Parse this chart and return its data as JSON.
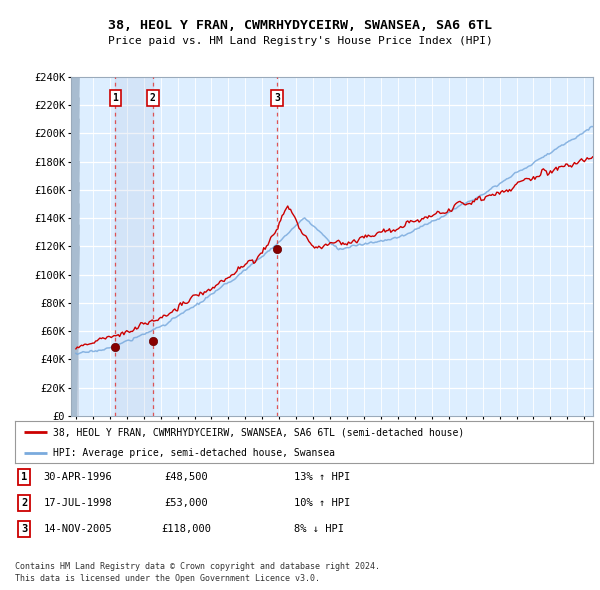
{
  "title": "38, HEOL Y FRAN, CWMRHYDYCEIRW, SWANSEA, SA6 6TL",
  "subtitle": "Price paid vs. HM Land Registry's House Price Index (HPI)",
  "xlim_start": 1993.7,
  "xlim_end": 2024.5,
  "ylim_min": 0,
  "ylim_max": 240000,
  "ytick_step": 20000,
  "sale_dates_num": [
    1996.33,
    1998.54,
    2005.87
  ],
  "sale_prices": [
    48500,
    53000,
    118000
  ],
  "sale_labels": [
    "1",
    "2",
    "3"
  ],
  "legend_line1": "38, HEOL Y FRAN, CWMRHYDYCEIRW, SWANSEA, SA6 6TL (semi-detached house)",
  "legend_line2": "HPI: Average price, semi-detached house, Swansea",
  "table_data": [
    [
      "1",
      "30-APR-1996",
      "£48,500",
      "13% ↑ HPI"
    ],
    [
      "2",
      "17-JUL-1998",
      "£53,000",
      "10% ↑ HPI"
    ],
    [
      "3",
      "14-NOV-2005",
      "£118,000",
      "8% ↓ HPI"
    ]
  ],
  "footer": "Contains HM Land Registry data © Crown copyright and database right 2024.\nThis data is licensed under the Open Government Licence v3.0.",
  "red_line_color": "#cc0000",
  "blue_line_color": "#7aaadd",
  "bg_color": "#ddeeff",
  "grid_color": "#c8d8e8",
  "sale_marker_color": "#880000",
  "dashed_line_color": "#dd4444",
  "box_color": "#cc0000",
  "hatch_bg": "#c8d4e4",
  "shade_color": "#c8d8f0"
}
